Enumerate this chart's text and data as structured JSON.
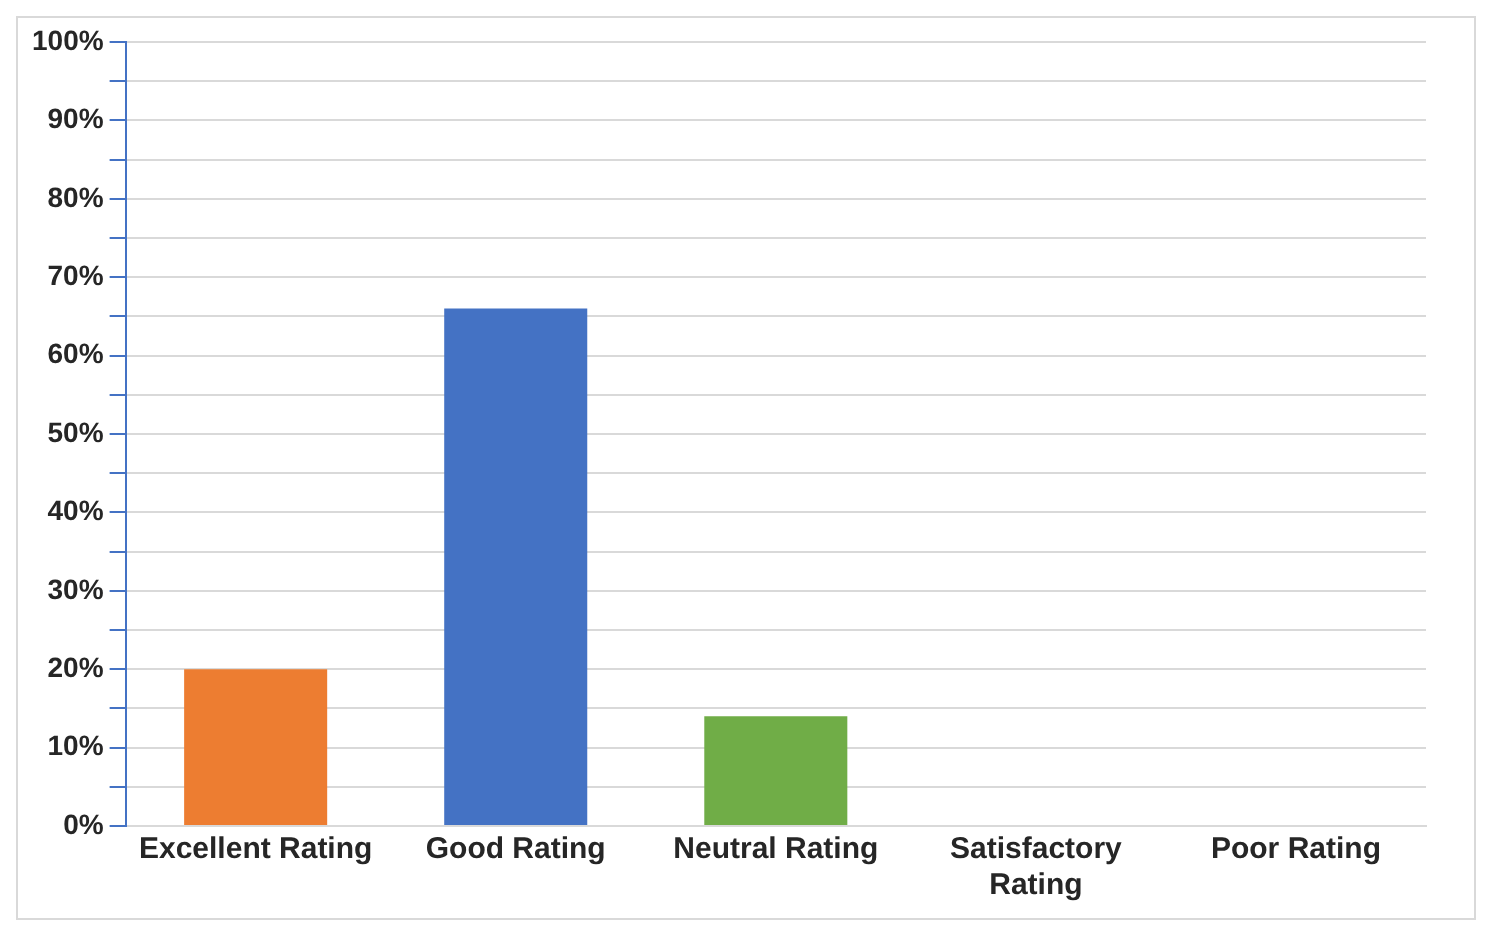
{
  "chart_data": {
    "type": "bar",
    "categories": [
      "Excellent Rating",
      "Good Rating",
      "Neutral Rating",
      "Satisfactory Rating",
      "Poor Rating"
    ],
    "values": [
      20,
      66,
      14,
      0,
      0
    ],
    "colors": [
      "#ed7d31",
      "#4472c4",
      "#70ad47",
      "#a5a5a5",
      "#ffc000"
    ],
    "ylim": [
      0,
      100
    ],
    "yticks": [
      {
        "value": 0,
        "label": "0%"
      },
      {
        "value": 5,
        "label": null
      },
      {
        "value": 10,
        "label": "10%"
      },
      {
        "value": 15,
        "label": null
      },
      {
        "value": 20,
        "label": "20%"
      },
      {
        "value": 25,
        "label": null
      },
      {
        "value": 30,
        "label": "30%"
      },
      {
        "value": 35,
        "label": null
      },
      {
        "value": 40,
        "label": "40%"
      },
      {
        "value": 45,
        "label": null
      },
      {
        "value": 50,
        "label": "50%"
      },
      {
        "value": 55,
        "label": null
      },
      {
        "value": 60,
        "label": "60%"
      },
      {
        "value": 65,
        "label": null
      },
      {
        "value": 70,
        "label": "70%"
      },
      {
        "value": 75,
        "label": null
      },
      {
        "value": 80,
        "label": "80%"
      },
      {
        "value": 85,
        "label": null
      },
      {
        "value": 90,
        "label": "90%"
      },
      {
        "value": 95,
        "label": null
      },
      {
        "value": 100,
        "label": "100%"
      }
    ],
    "grid": true
  }
}
